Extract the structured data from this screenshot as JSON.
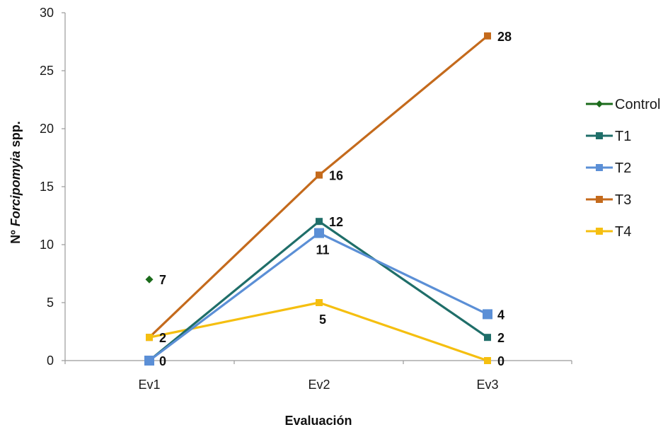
{
  "chart_data": {
    "type": "line",
    "categories": [
      "Ev1",
      "Ev2",
      "Ev3"
    ],
    "ylim": [
      0,
      30
    ],
    "yticks": [
      0,
      5,
      10,
      15,
      20,
      25,
      30
    ],
    "xlabel": "Evaluación",
    "ylabel_prefix": "Nº ",
    "ylabel_italic": "Forcipomyia",
    "ylabel_suffix": " spp.",
    "grid": false,
    "legend_position": "right",
    "series": [
      {
        "name": "Control",
        "color": "#1b6b1b",
        "marker": "diamond",
        "values": [
          7,
          null,
          null
        ]
      },
      {
        "name": "T1",
        "color": "#1f6e69",
        "marker": "square",
        "values": [
          0,
          12,
          2
        ]
      },
      {
        "name": "T2",
        "color": "#5b8fd6",
        "marker": "square",
        "values": [
          0,
          11,
          4
        ]
      },
      {
        "name": "T3",
        "color": "#c46a1c",
        "marker": "square",
        "values": [
          2,
          16,
          28
        ]
      },
      {
        "name": "T4",
        "color": "#f5bf10",
        "marker": "square",
        "values": [
          2,
          5,
          0
        ]
      }
    ],
    "data_labels": [
      {
        "category": "Ev1",
        "value": 7,
        "text": "7"
      },
      {
        "category": "Ev1",
        "value": 2,
        "text": "2"
      },
      {
        "category": "Ev1",
        "value": 0,
        "text": "0"
      },
      {
        "category": "Ev2",
        "value": 16,
        "text": "16"
      },
      {
        "category": "Ev2",
        "value": 12,
        "text": "12"
      },
      {
        "category": "Ev2",
        "value": 11,
        "text": "11",
        "below": true
      },
      {
        "category": "Ev2",
        "value": 5,
        "text": "5",
        "below": true
      },
      {
        "category": "Ev3",
        "value": 28,
        "text": "28"
      },
      {
        "category": "Ev3",
        "value": 4,
        "text": "4"
      },
      {
        "category": "Ev3",
        "value": 2,
        "text": "2"
      },
      {
        "category": "Ev3",
        "value": 0,
        "text": "0"
      }
    ]
  }
}
